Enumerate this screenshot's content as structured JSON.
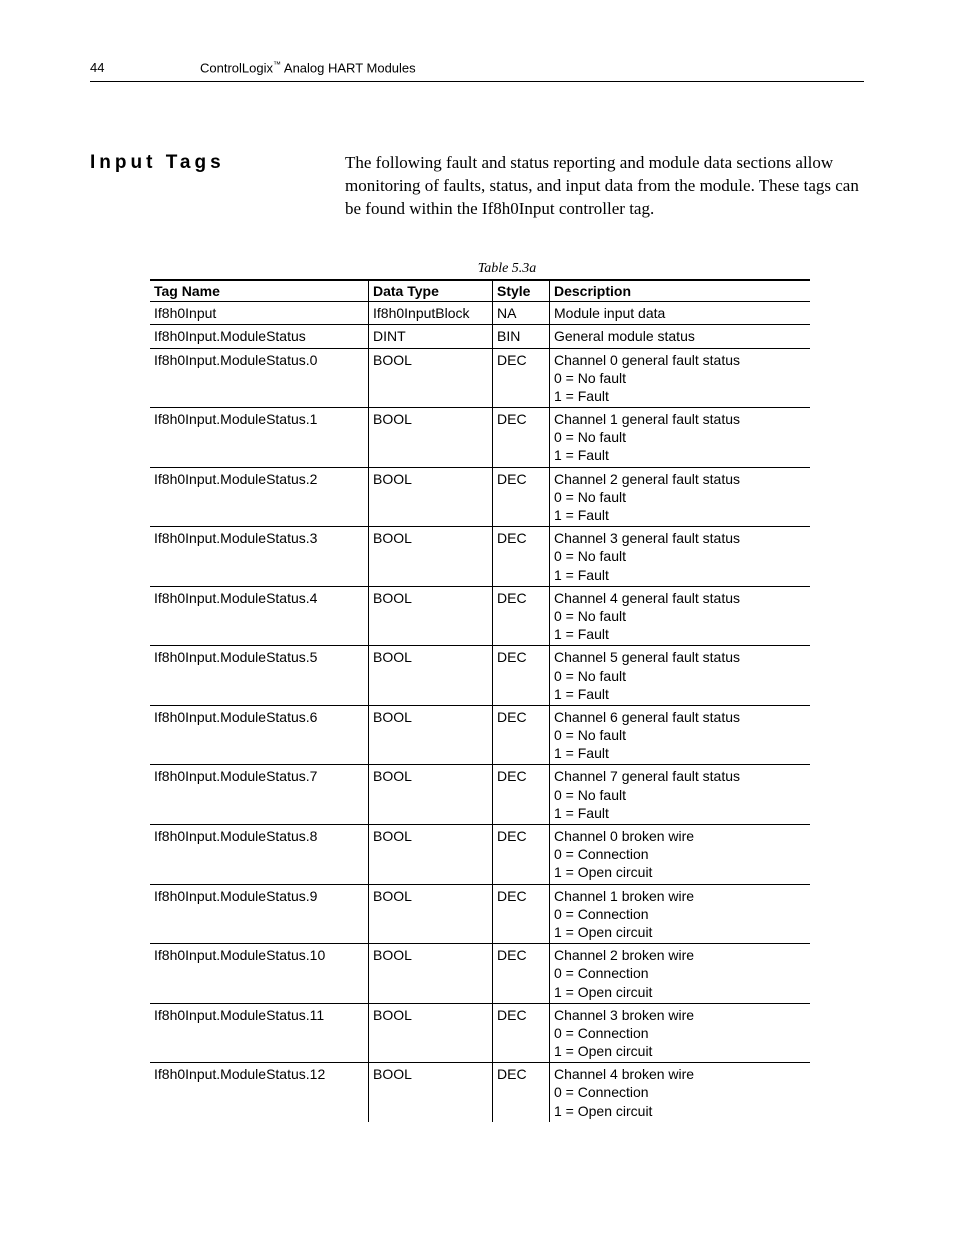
{
  "header": {
    "page_number": "44",
    "doc_title_pre": "ControlLogix",
    "doc_title_tm": "™",
    "doc_title_post": " Analog HART Modules"
  },
  "section": {
    "title": "Input Tags",
    "body": "The following fault and status reporting and module data sections allow monitoring of faults, status, and input data from the module.  These tags can be found within the If8h0Input controller tag."
  },
  "table": {
    "caption": "Table 5.3a",
    "columns": [
      "Tag Name",
      "Data Type",
      "Style",
      "Description"
    ],
    "rows": [
      {
        "tag": "If8h0Input",
        "type": "If8h0InputBlock",
        "style": "NA",
        "desc": [
          "Module input data"
        ]
      },
      {
        "tag": "If8h0Input.ModuleStatus",
        "type": "DINT",
        "style": "BIN",
        "desc": [
          "General module status"
        ]
      },
      {
        "tag": "If8h0Input.ModuleStatus.0",
        "type": "BOOL",
        "style": "DEC",
        "desc": [
          "Channel 0 general fault status",
          "0 = No fault",
          "1 = Fault"
        ]
      },
      {
        "tag": "If8h0Input.ModuleStatus.1",
        "type": "BOOL",
        "style": "DEC",
        "desc": [
          "Channel 1 general fault status",
          "0 = No fault",
          "1 = Fault"
        ]
      },
      {
        "tag": "If8h0Input.ModuleStatus.2",
        "type": "BOOL",
        "style": "DEC",
        "desc": [
          "Channel 2 general fault status",
          "0 = No fault",
          "1 = Fault"
        ]
      },
      {
        "tag": "If8h0Input.ModuleStatus.3",
        "type": "BOOL",
        "style": "DEC",
        "desc": [
          "Channel 3 general fault status",
          "0 = No fault",
          "1 = Fault"
        ]
      },
      {
        "tag": "If8h0Input.ModuleStatus.4",
        "type": "BOOL",
        "style": "DEC",
        "desc": [
          "Channel 4 general fault status",
          "0 = No fault",
          "1 = Fault"
        ]
      },
      {
        "tag": "If8h0Input.ModuleStatus.5",
        "type": "BOOL",
        "style": "DEC",
        "desc": [
          "Channel 5 general fault status",
          "0 = No fault",
          "1 = Fault"
        ]
      },
      {
        "tag": "If8h0Input.ModuleStatus.6",
        "type": "BOOL",
        "style": "DEC",
        "desc": [
          "Channel 6 general fault status",
          "0 = No fault",
          "1 = Fault"
        ]
      },
      {
        "tag": "If8h0Input.ModuleStatus.7",
        "type": "BOOL",
        "style": "DEC",
        "desc": [
          "Channel 7 general fault status",
          "0 = No fault",
          "1 = Fault"
        ]
      },
      {
        "tag": "If8h0Input.ModuleStatus.8",
        "type": "BOOL",
        "style": "DEC",
        "desc": [
          "Channel 0 broken wire",
          "0 = Connection",
          "1 = Open circuit"
        ]
      },
      {
        "tag": "If8h0Input.ModuleStatus.9",
        "type": "BOOL",
        "style": "DEC",
        "desc": [
          "Channel 1 broken wire",
          "0 = Connection",
          "1 = Open circuit"
        ]
      },
      {
        "tag": "If8h0Input.ModuleStatus.10",
        "type": "BOOL",
        "style": "DEC",
        "desc": [
          "Channel 2 broken wire",
          "0 = Connection",
          "1 = Open circuit"
        ]
      },
      {
        "tag": "If8h0Input.ModuleStatus.11",
        "type": "BOOL",
        "style": "DEC",
        "desc": [
          "Channel 3 broken wire",
          "0 = Connection",
          "1 = Open circuit"
        ]
      },
      {
        "tag": "If8h0Input.ModuleStatus.12",
        "type": "BOOL",
        "style": "DEC",
        "desc": [
          "Channel 4 broken wire",
          "0 = Connection",
          "1 = Open circuit"
        ]
      }
    ]
  }
}
